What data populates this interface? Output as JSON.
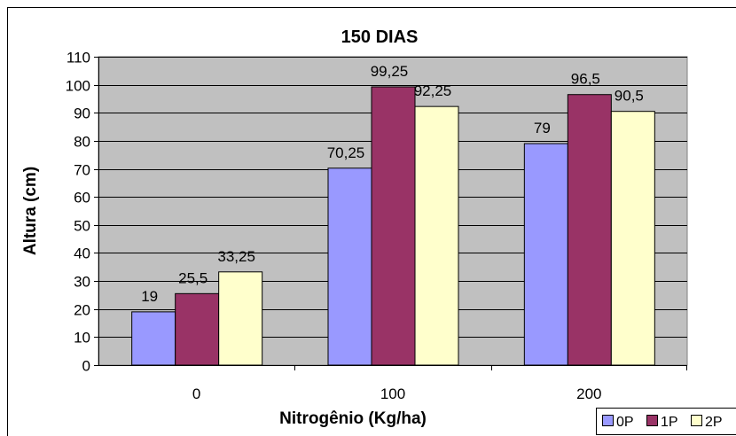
{
  "chart_data": {
    "type": "bar",
    "title": "150 DIAS",
    "xlabel": "Nitrogênio (Kg/ha)",
    "ylabel": "Altura (cm)",
    "categories": [
      "0",
      "100",
      "200"
    ],
    "series": [
      {
        "name": "0P",
        "values": [
          19,
          70.25,
          79
        ],
        "labels": [
          "19",
          "70,25",
          "79"
        ],
        "color": "#9999ff"
      },
      {
        "name": "1P",
        "values": [
          25.5,
          99.25,
          96.5
        ],
        "labels": [
          "25,5",
          "99,25",
          "96,5"
        ],
        "color": "#993366"
      },
      {
        "name": "2P",
        "values": [
          33.25,
          92.25,
          90.5
        ],
        "labels": [
          "33,25",
          "92,25",
          "90,5"
        ],
        "color": "#ffffcc"
      }
    ],
    "ylim": [
      0,
      110
    ],
    "yticks": [
      "0",
      "10",
      "20",
      "30",
      "40",
      "50",
      "60",
      "70",
      "80",
      "90",
      "100",
      "110"
    ],
    "grid": true,
    "legend_position": "bottom-right",
    "plot_background": "#c0c0c0"
  }
}
